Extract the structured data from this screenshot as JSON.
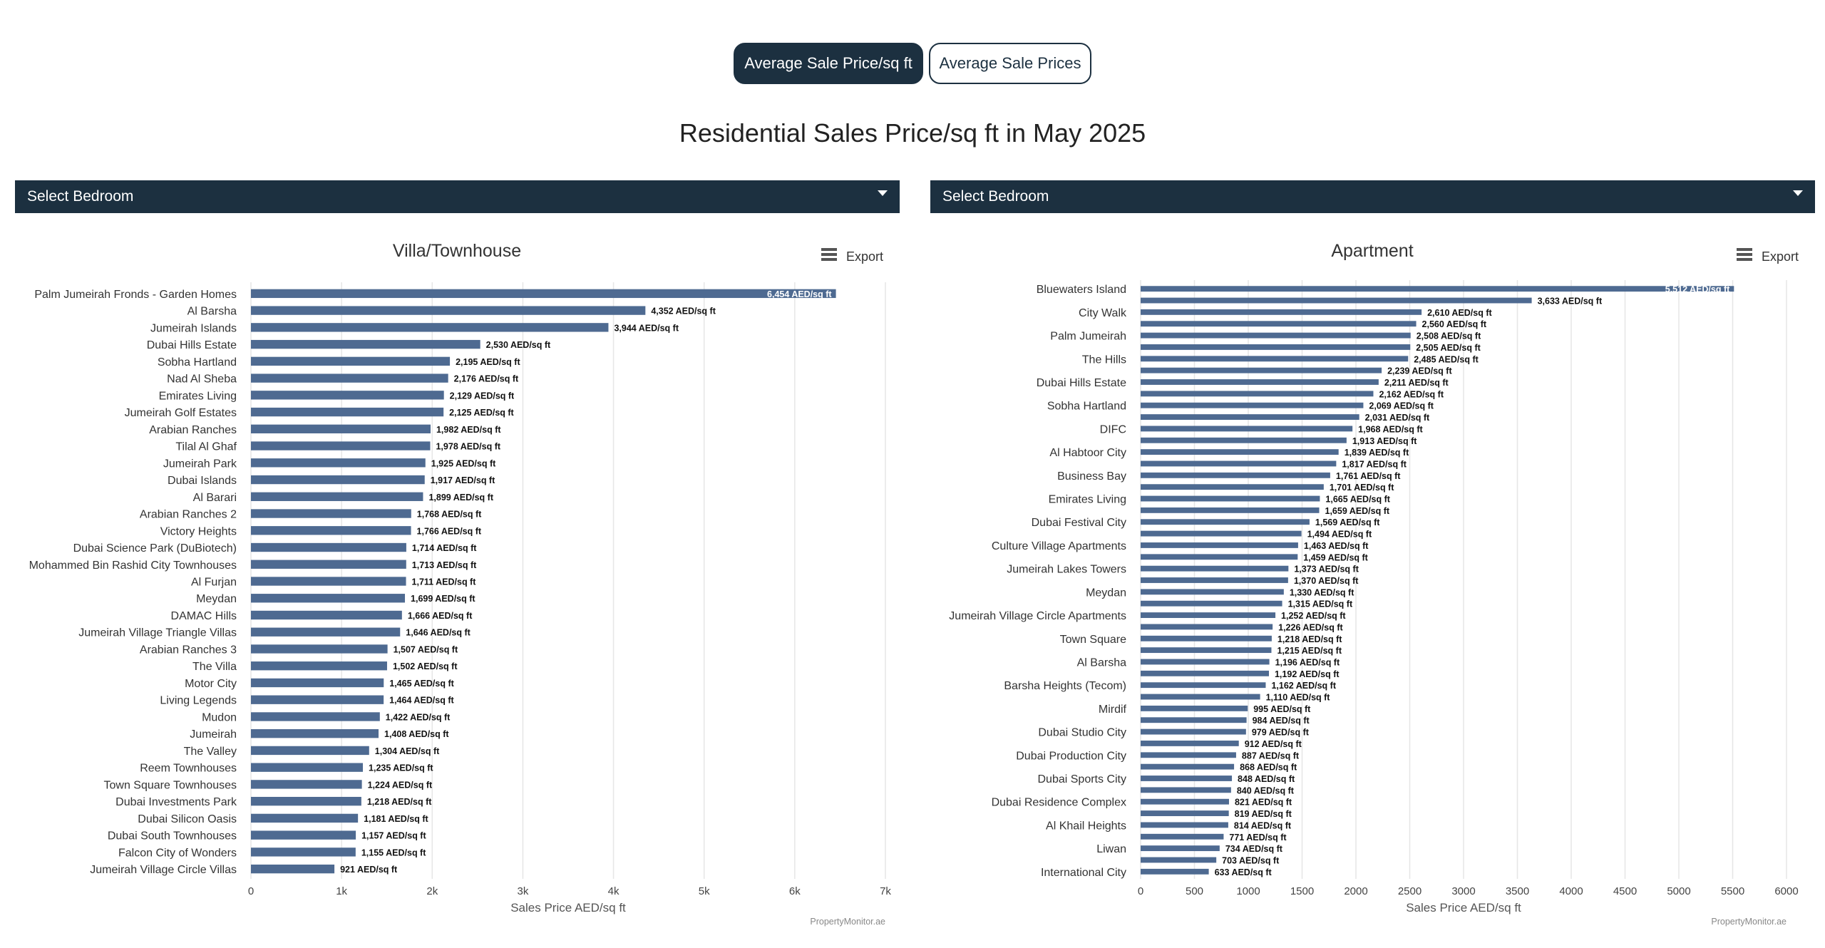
{
  "tabs": [
    {
      "label": "Average Sale Price/sq ft",
      "active": true
    },
    {
      "label": "Average Sale Prices",
      "active": false
    }
  ],
  "page_title": "Residential Sales Price/sq ft in May 2025",
  "bedroom_select": {
    "left": "Select Bedroom",
    "right": "Select Bedroom"
  },
  "export_label": "Export",
  "credit": "PropertyMonitor.ae",
  "colors": {
    "bar": "#4e6a91",
    "dark": "#1c3040",
    "grid": "#e6e6e6"
  },
  "chart_data": [
    {
      "type": "bar",
      "orientation": "horizontal",
      "title": "Villa/Townhouse",
      "xlabel": "Sales Price AED/sq ft",
      "xlim": [
        0,
        7000
      ],
      "xticks": [
        0,
        1000,
        2000,
        3000,
        4000,
        5000,
        6000,
        7000
      ],
      "xtick_labels": [
        "0",
        "1k",
        "2k",
        "3k",
        "4k",
        "5k",
        "6k",
        "7k"
      ],
      "value_suffix": " AED/sq ft",
      "grid": true,
      "categories": [
        "Palm Jumeirah Fronds - Garden Homes",
        "Al Barsha",
        "Jumeirah Islands",
        "Dubai Hills Estate",
        "Sobha Hartland",
        "Nad Al Sheba",
        "Emirates Living",
        "Jumeirah Golf Estates",
        "Arabian Ranches",
        "Tilal Al Ghaf",
        "Jumeirah Park",
        "Dubai Islands",
        "Al Barari",
        "Arabian Ranches 2",
        "Victory Heights",
        "Dubai Science Park (DuBiotech)",
        "Mohammed Bin Rashid City Townhouses",
        "Al Furjan",
        "Meydan",
        "DAMAC Hills",
        "Jumeirah Village Triangle Villas",
        "Arabian Ranches 3",
        "The Villa",
        "Motor City",
        "Living Legends",
        "Mudon",
        "Jumeirah",
        "The Valley",
        "Reem Townhouses",
        "Town Square Townhouses",
        "Dubai Investments Park",
        "Dubai Silicon Oasis",
        "Dubai South Townhouses",
        "Falcon City of Wonders",
        "Jumeirah Village Circle Villas"
      ],
      "values": [
        6454,
        4352,
        3944,
        2530,
        2195,
        2176,
        2129,
        2125,
        1982,
        1978,
        1925,
        1917,
        1899,
        1768,
        1766,
        1714,
        1713,
        1711,
        1699,
        1666,
        1646,
        1507,
        1502,
        1465,
        1464,
        1422,
        1408,
        1304,
        1235,
        1224,
        1218,
        1181,
        1157,
        1155,
        921
      ]
    },
    {
      "type": "bar",
      "orientation": "horizontal",
      "title": "Apartment",
      "xlabel": "Sales Price AED/sq ft",
      "xlim": [
        0,
        6000
      ],
      "xticks": [
        0,
        500,
        1000,
        1500,
        2000,
        2500,
        3000,
        3500,
        4000,
        4500,
        5000,
        5500,
        6000
      ],
      "xtick_labels": [
        "0",
        "500",
        "1000",
        "1500",
        "2000",
        "2500",
        "3000",
        "3500",
        "4000",
        "4500",
        "5000",
        "5500",
        "6000"
      ],
      "value_suffix": " AED/sq ft",
      "grid": true,
      "category_label_step": 2,
      "categories": [
        "Bluewaters Island",
        "",
        "City Walk",
        "",
        "Palm Jumeirah",
        "",
        "The Hills",
        "",
        "Dubai Hills Estate",
        "",
        "Sobha Hartland",
        "",
        "DIFC",
        "",
        "Al Habtoor City",
        "",
        "Business Bay",
        "",
        "Emirates Living",
        "",
        "Dubai Festival City",
        "",
        "Culture Village Apartments",
        "",
        "Jumeirah Lakes Towers",
        "",
        "Meydan",
        "",
        "Jumeirah Village Circle Apartments",
        "",
        "Town Square",
        "",
        "Al Barsha",
        "",
        "Barsha Heights (Tecom)",
        "",
        "Mirdif",
        "",
        "Dubai Studio City",
        "",
        "Dubai Production City",
        "",
        "Dubai Sports City",
        "",
        "Dubai Residence Complex",
        "",
        "Al Khail Heights",
        "",
        "Liwan",
        "",
        "International City"
      ],
      "values": [
        5512,
        3633,
        2610,
        2560,
        2508,
        2505,
        2485,
        2239,
        2211,
        2162,
        2069,
        2031,
        1968,
        1913,
        1839,
        1817,
        1761,
        1701,
        1665,
        1659,
        1569,
        1494,
        1463,
        1459,
        1373,
        1370,
        1330,
        1315,
        1252,
        1226,
        1218,
        1215,
        1196,
        1192,
        1162,
        1110,
        995,
        984,
        979,
        912,
        887,
        868,
        848,
        840,
        821,
        819,
        814,
        771,
        734,
        703,
        633
      ]
    }
  ]
}
